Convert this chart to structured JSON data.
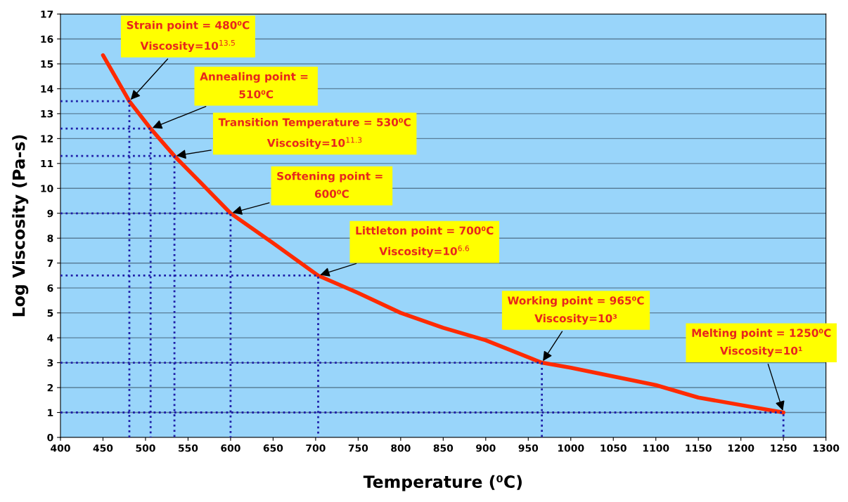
{
  "chart_data": {
    "type": "line",
    "xlabel": "Temperature (⁰C)",
    "ylabel": "Log Viscosity (Pa-s)",
    "x": [
      450,
      481,
      506,
      534,
      560,
      600,
      650,
      703,
      750,
      800,
      850,
      900,
      966,
      1000,
      1100,
      1150,
      1200,
      1250
    ],
    "series": [
      {
        "color": "#ff2a00",
        "values": [
          15.35,
          13.5,
          12.4,
          11.3,
          10.4,
          9.0,
          7.8,
          6.5,
          5.8,
          5.0,
          4.4,
          3.9,
          3.0,
          2.8,
          2.1,
          1.6,
          1.3,
          1.0
        ]
      },
      {
        "color": "#1f1fa8",
        "line_style": "dotted",
        "x": [
          400,
          481,
          481
        ],
        "values": [
          13.5,
          13.5,
          0
        ]
      },
      {
        "color": "#1f1fa8",
        "line_style": "dotted",
        "x": [
          400,
          506,
          506
        ],
        "values": [
          12.4,
          12.4,
          0
        ]
      },
      {
        "color": "#1f1fa8",
        "line_style": "dotted",
        "x": [
          400,
          534,
          534
        ],
        "values": [
          11.3,
          11.3,
          0
        ]
      },
      {
        "color": "#1f1fa8",
        "line_style": "dotted",
        "x": [
          400,
          600,
          600
        ],
        "values": [
          9.0,
          9.0,
          0
        ]
      },
      {
        "color": "#1f1fa8",
        "line_style": "dotted",
        "x": [
          400,
          703,
          703
        ],
        "values": [
          6.5,
          6.5,
          0
        ]
      },
      {
        "color": "#1f1fa8",
        "line_style": "dotted",
        "x": [
          400,
          966,
          966
        ],
        "values": [
          3.0,
          3.0,
          0
        ]
      },
      {
        "color": "#1f1fa8",
        "line_style": "dotted",
        "x": [
          400,
          1250,
          1250
        ],
        "values": [
          1.0,
          1.0,
          0
        ]
      }
    ],
    "xlim": [
      400,
      1300
    ],
    "xticks": [
      400,
      450,
      500,
      550,
      600,
      650,
      700,
      750,
      800,
      850,
      900,
      950,
      1000,
      1050,
      1100,
      1150,
      1200,
      1250,
      1300
    ],
    "ylim": [
      0,
      17
    ],
    "yticks": [
      0,
      1,
      2,
      3,
      4,
      5,
      6,
      7,
      8,
      9,
      10,
      11,
      12,
      13,
      14,
      15,
      16,
      17
    ],
    "grid": "y",
    "legend": false,
    "marker": "none",
    "line_style": "solid",
    "annotations": [
      {
        "text": "Strain point = 480⁰C\nViscosity=10$^{13.5}$",
        "x": 481,
        "y": 13.5
      },
      {
        "text": "Annealing point = \n510⁰C",
        "x": 506,
        "y": 12.4
      },
      {
        "text": "Transition Temperature = 530⁰C\nViscosity=10$^{11.3}$",
        "x": 534,
        "y": 11.3
      },
      {
        "text": "Softening point = \n600⁰C",
        "x": 600,
        "y": 9.0
      },
      {
        "text": "Littleton point = 700⁰C\nViscosity=10$^{6.6}$",
        "x": 703,
        "y": 6.5
      },
      {
        "text": "Working point = 965⁰C\nViscosity=10³",
        "x": 966,
        "y": 3.0
      },
      {
        "text": "Melting point = 1250⁰C\nViscosity=10¹",
        "x": 1250,
        "y": 1.0
      }
    ]
  }
}
